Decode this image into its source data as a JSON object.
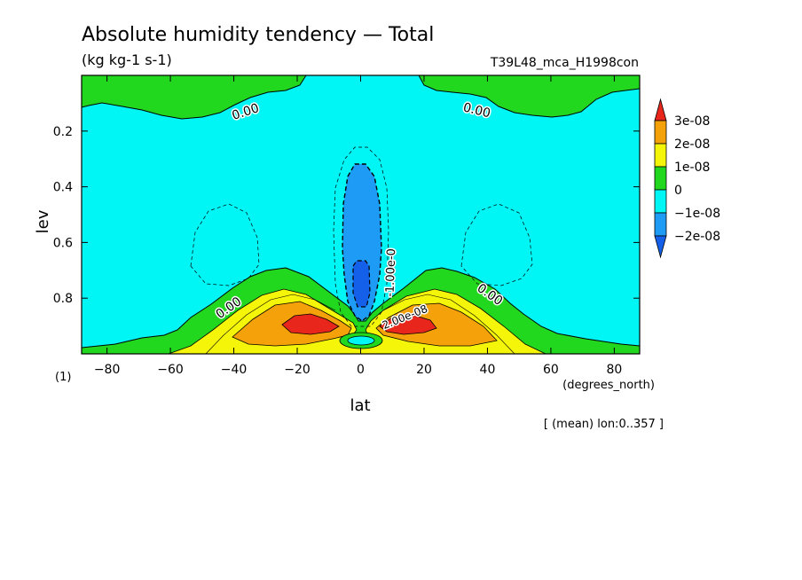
{
  "chart_data": {
    "type": "contour",
    "title": "Absolute humidity tendency — Total",
    "subtitle": "(kg kg-1 s-1)",
    "run_label": "T39L48_mca_H1998con",
    "xlabel": "lat",
    "x_units": "(degrees_north)",
    "ylabel": "lev",
    "y_units": "(1)",
    "footnote": "[ (mean) lon:0..357 ]",
    "xlim": [
      -88,
      88
    ],
    "ylim": [
      1.0,
      0.0
    ],
    "x_ticks": [
      -80,
      -60,
      -40,
      -20,
      0,
      20,
      40,
      60,
      80
    ],
    "x_tick_labels": [
      "−80",
      "−60",
      "−40",
      "−20",
      "0",
      "20",
      "40",
      "60",
      "80"
    ],
    "y_ticks": [
      0.2,
      0.4,
      0.6,
      0.8
    ],
    "y_tick_labels": [
      "0.2",
      "0.4",
      "0.6",
      "0.8"
    ],
    "contour_labels": [
      "0.00",
      "0.00",
      "0.00",
      "0.00",
      "-1.00e-0",
      "2.00e-08"
    ],
    "legend": {
      "placement": "right",
      "levels": [
        "3e-08",
        "2e-08",
        "1e-08",
        "0",
        "−1e-08",
        "−2e-08"
      ],
      "colors": [
        "#e8261c",
        "#f5a20a",
        "#f5f50a",
        "#21d81e",
        "#00f5f5",
        "#1e9bf5",
        "#1560e8"
      ]
    },
    "colors": {
      "red": "#e8261c",
      "orange": "#f5a20a",
      "yellow": "#f5f50a",
      "green": "#21d81e",
      "cyan": "#00f5f5",
      "blue": "#1e9bf5",
      "darkblue": "#1560e8"
    }
  }
}
